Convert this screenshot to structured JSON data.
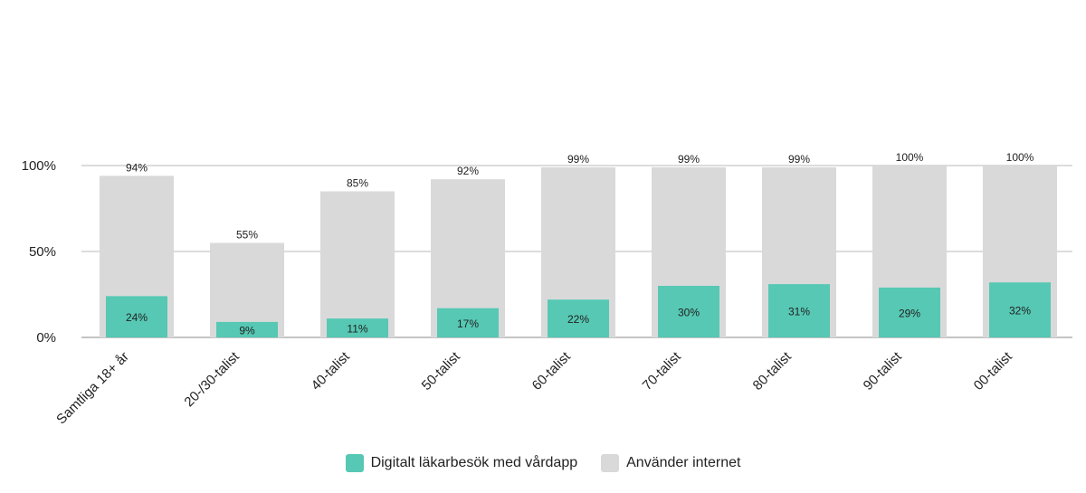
{
  "chart_data": {
    "type": "bar",
    "title": "",
    "xlabel": "",
    "ylabel": "",
    "ylim": [
      0,
      100
    ],
    "yticks": [
      "0%",
      "50%",
      "100%"
    ],
    "grid": true,
    "legend_position": "bottom",
    "categories": [
      "Samtliga 18+ år",
      "20-/30-talist",
      "40-talist",
      "50-talist",
      "60-talist",
      "70-talist",
      "80-talist",
      "90-talist",
      "00-talist"
    ],
    "series": [
      {
        "name": "Använder internet",
        "color": "#d9d9d9",
        "values": [
          94,
          55,
          85,
          92,
          99,
          99,
          99,
          100,
          100
        ],
        "labels": [
          "94%",
          "55%",
          "85%",
          "92%",
          "99%",
          "99%",
          "99%",
          "100%",
          "100%"
        ]
      },
      {
        "name": "Digitalt läkarbesök med vårdapp",
        "color": "#56c8b4",
        "values": [
          24,
          9,
          11,
          17,
          22,
          30,
          31,
          29,
          32
        ],
        "labels": [
          "24%",
          "9%",
          "11%",
          "17%",
          "22%",
          "30%",
          "31%",
          "29%",
          "32%"
        ]
      }
    ]
  },
  "legend": {
    "items": [
      {
        "label": "Digitalt läkarbesök med vårdapp",
        "color": "#56c8b4"
      },
      {
        "label": "Använder internet",
        "color": "#d9d9d9"
      }
    ]
  }
}
